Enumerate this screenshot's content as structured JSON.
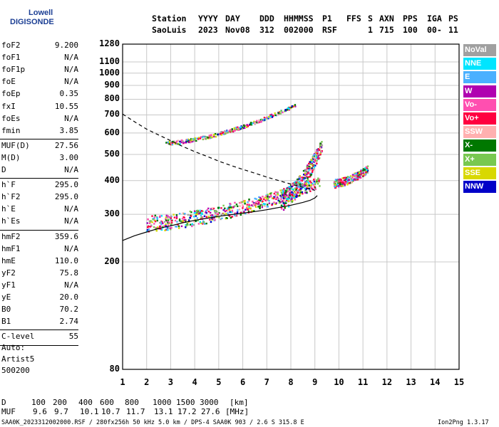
{
  "logo": {
    "line1": "Lowell",
    "line2": "DIGISONDE"
  },
  "header": {
    "labels": [
      "Station",
      "YYYY",
      "DAY",
      "DDD",
      "HHMMSS",
      "P1",
      "FFS",
      "S",
      "AXN",
      "PPS",
      "IGA",
      "PS"
    ],
    "values": [
      "SaoLuis",
      "2023",
      "Nov08",
      "312",
      "002000",
      "RSF",
      "1",
      "715",
      "100",
      "00-",
      "11"
    ]
  },
  "params": {
    "group1": [
      {
        "name": "foF2",
        "value": "9.200"
      },
      {
        "name": "foF1",
        "value": "N/A"
      },
      {
        "name": "foF1p",
        "value": "N/A"
      },
      {
        "name": "foE",
        "value": "N/A"
      },
      {
        "name": "foEp",
        "value": "0.35"
      },
      {
        "name": "fxI",
        "value": "10.55"
      },
      {
        "name": "foEs",
        "value": "N/A"
      },
      {
        "name": "fmin",
        "value": "3.85"
      }
    ],
    "group2": [
      {
        "name": "MUF(D)",
        "value": "27.56"
      },
      {
        "name": "M(D)",
        "value": "3.00"
      },
      {
        "name": "D",
        "value": "N/A"
      }
    ],
    "group3": [
      {
        "name": "h`F",
        "value": "295.0"
      },
      {
        "name": "h`F2",
        "value": "295.0"
      },
      {
        "name": "h`E",
        "value": "N/A"
      },
      {
        "name": "h`Es",
        "value": "N/A"
      }
    ],
    "group4": [
      {
        "name": "hmF2",
        "value": "359.6"
      },
      {
        "name": "hmF1",
        "value": "N/A"
      },
      {
        "name": "hmE",
        "value": "110.0"
      },
      {
        "name": "yF2",
        "value": "75.8"
      },
      {
        "name": "yF1",
        "value": "N/A"
      },
      {
        "name": "yE",
        "value": "20.0"
      },
      {
        "name": "B0",
        "value": "70.2"
      },
      {
        "name": "B1",
        "value": "2.74"
      }
    ],
    "group5": [
      {
        "name": "C-level",
        "value": "55"
      }
    ]
  },
  "auto": {
    "line1": "Auto:",
    "line2": "Artist5",
    "line3": "500200"
  },
  "legend": [
    {
      "label": "NoVal",
      "color": "#a0a0a0"
    },
    {
      "label": "NNE",
      "color": "#00e5ff"
    },
    {
      "label": "E",
      "color": "#4ab0ff"
    },
    {
      "label": "W",
      "color": "#b000b0"
    },
    {
      "label": "Vo-",
      "color": "#ff4fb0"
    },
    {
      "label": "Vo+",
      "color": "#ff0040"
    },
    {
      "label": "SSW",
      "color": "#ffb0b0"
    },
    {
      "label": "X-",
      "color": "#007800"
    },
    {
      "label": "X+",
      "color": "#78c850"
    },
    {
      "label": "SSE",
      "color": "#d8d800"
    },
    {
      "label": "NNW",
      "color": "#0000c8"
    }
  ],
  "chart_data": {
    "type": "scatter",
    "xlabel": "",
    "ylabel": "",
    "xlim": [
      1,
      15
    ],
    "xticks": [
      1,
      2,
      3,
      4,
      5,
      6,
      7,
      8,
      9,
      10,
      11,
      12,
      13,
      14,
      15
    ],
    "ylim": [
      80,
      1280
    ],
    "ylog": true,
    "yticks": [
      80,
      200,
      300,
      400,
      500,
      600,
      700,
      800,
      900,
      1000,
      1100,
      1280
    ],
    "grid": true,
    "series": [
      {
        "style": "solid",
        "x": [
          1.0,
          1.5,
          2.0,
          2.5,
          3.0,
          3.5,
          4.0,
          4.5,
          5.0,
          5.5,
          6.0,
          6.5,
          7.0,
          7.5,
          8.0,
          8.5,
          8.8,
          9.0,
          9.1
        ],
        "y": [
          240,
          250,
          258,
          266,
          272,
          279,
          285,
          290,
          295,
          299,
          303,
          307,
          312,
          318,
          324,
          332,
          338,
          345,
          352
        ]
      },
      {
        "style": "dashed",
        "x": [
          1.0,
          1.5,
          2.0,
          2.5,
          3.0,
          3.5,
          4.0,
          4.5,
          5.0,
          5.5,
          6.0,
          6.5,
          7.0,
          7.5,
          8.0,
          8.5,
          9.0
        ],
        "y": [
          705,
          660,
          620,
          590,
          562,
          535,
          512,
          492,
          472,
          455,
          440,
          426,
          412,
          400,
          388,
          378,
          368
        ]
      }
    ],
    "echo_clusters": [
      {
        "name": "F-trace low",
        "x_range": [
          2.0,
          9.2
        ],
        "y_start": 278,
        "y_end": 395,
        "spread": 38,
        "density": 0.4
      },
      {
        "name": "F-trace spread",
        "x_range": [
          7.6,
          9.3
        ],
        "y_start": 340,
        "y_end": 540,
        "spread": 60,
        "density": 0.9
      },
      {
        "name": "2nd hop",
        "x_range": [
          2.8,
          8.2
        ],
        "y_start": 550,
        "y_end": 760,
        "spread": 18,
        "density": 0.25
      },
      {
        "name": "fxI spread",
        "x_range": [
          9.8,
          11.2
        ],
        "y_start": 390,
        "y_end": 440,
        "spread": 28,
        "density": 0.7
      }
    ]
  },
  "footer": {
    "d_label": "D",
    "d_values": [
      "100",
      "200",
      "400",
      "600",
      "800",
      "1000",
      "1500",
      "3000"
    ],
    "d_unit": "[km]",
    "muf_label": "MUF",
    "muf_values": [
      "9.6",
      "9.7",
      "10.1",
      "10.7",
      "11.7",
      "13.1",
      "17.2",
      "27.6"
    ],
    "muf_unit": "[MHz]",
    "file_info": "SAA0K_2023312002000.RSF / 280fx256h 50 kHz 5.0 km / DPS-4 SAA0K 903 / 2.6 S 315.8 E",
    "version": "Ion2Png 1.3.17"
  }
}
